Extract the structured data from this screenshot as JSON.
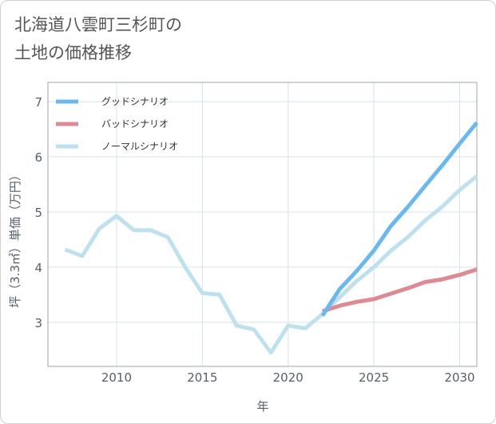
{
  "chart_data": {
    "type": "line",
    "title_lines": [
      "北海道八雲町三杉町の",
      "土地の価格推移"
    ],
    "xlabel": "年",
    "ylabel": "坪（3.3㎡）単価（万円）",
    "xlim": [
      2006,
      2031
    ],
    "ylim": [
      2.2,
      7.35
    ],
    "xticks": [
      2010,
      2015,
      2020,
      2025,
      2030
    ],
    "yticks": [
      3,
      4,
      5,
      6,
      7
    ],
    "legend_position": "top-left",
    "series": [
      {
        "name": "グッドシナリオ",
        "color": "#6cb8ec",
        "x": [
          2022,
          2023,
          2024,
          2025,
          2026,
          2027,
          2028,
          2029,
          2030,
          2031
        ],
        "y": [
          3.12,
          3.6,
          3.93,
          4.3,
          4.75,
          5.1,
          5.48,
          5.85,
          6.24,
          6.62
        ]
      },
      {
        "name": "バッドシナリオ",
        "color": "#dd8a94",
        "x": [
          2022,
          2023,
          2024,
          2025,
          2026,
          2027,
          2028,
          2029,
          2030,
          2031
        ],
        "y": [
          3.2,
          3.3,
          3.37,
          3.42,
          3.52,
          3.62,
          3.73,
          3.78,
          3.86,
          3.96
        ]
      },
      {
        "name": "ノーマルシナリオ",
        "color": "#bfe1ee",
        "x": [
          2007,
          2008,
          2009,
          2010,
          2011,
          2012,
          2013,
          2014,
          2015,
          2016,
          2017,
          2018,
          2019,
          2020,
          2021,
          2022,
          2023,
          2024,
          2025,
          2026,
          2027,
          2028,
          2029,
          2030,
          2031
        ],
        "y": [
          4.32,
          4.2,
          4.7,
          4.93,
          4.67,
          4.67,
          4.54,
          4.0,
          3.53,
          3.5,
          2.94,
          2.87,
          2.45,
          2.94,
          2.89,
          3.15,
          3.45,
          3.75,
          4.0,
          4.3,
          4.55,
          4.85,
          5.1,
          5.4,
          5.65
        ]
      }
    ]
  }
}
